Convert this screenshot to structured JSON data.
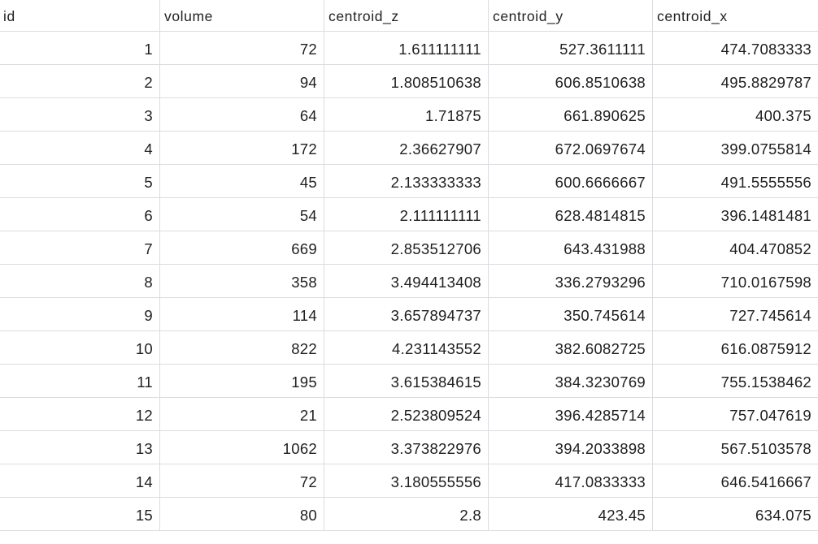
{
  "columns": [
    "id",
    "volume",
    "centroid_z",
    "centroid_y",
    "centroid_x"
  ],
  "rows": [
    [
      "1",
      "72",
      "1.611111111",
      "527.3611111",
      "474.7083333"
    ],
    [
      "2",
      "94",
      "1.808510638",
      "606.8510638",
      "495.8829787"
    ],
    [
      "3",
      "64",
      "1.71875",
      "661.890625",
      "400.375"
    ],
    [
      "4",
      "172",
      "2.36627907",
      "672.0697674",
      "399.0755814"
    ],
    [
      "5",
      "45",
      "2.133333333",
      "600.6666667",
      "491.5555556"
    ],
    [
      "6",
      "54",
      "2.111111111",
      "628.4814815",
      "396.1481481"
    ],
    [
      "7",
      "669",
      "2.853512706",
      "643.431988",
      "404.470852"
    ],
    [
      "8",
      "358",
      "3.494413408",
      "336.2793296",
      "710.0167598"
    ],
    [
      "9",
      "114",
      "3.657894737",
      "350.745614",
      "727.745614"
    ],
    [
      "10",
      "822",
      "4.231143552",
      "382.6082725",
      "616.0875912"
    ],
    [
      "11",
      "195",
      "3.615384615",
      "384.3230769",
      "755.1538462"
    ],
    [
      "12",
      "21",
      "2.523809524",
      "396.4285714",
      "757.047619"
    ],
    [
      "13",
      "1062",
      "3.373822976",
      "394.2033898",
      "567.5103578"
    ],
    [
      "14",
      "72",
      "3.180555556",
      "417.0833333",
      "646.5416667"
    ],
    [
      "15",
      "80",
      "2.8",
      "423.45",
      "634.075"
    ]
  ]
}
